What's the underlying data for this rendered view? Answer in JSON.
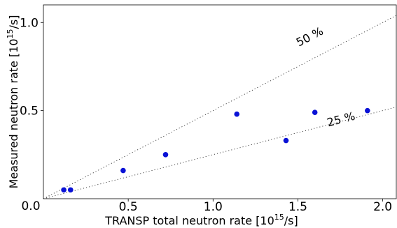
{
  "chart_data": {
    "type": "scatter",
    "title": "",
    "xlabel": "TRANSP total neutron rate [10",
    "xlabel_sup": "15",
    "xlabel_tail": "/s]",
    "ylabel": "Measured neutron rate [10",
    "ylabel_sup": "15",
    "ylabel_tail": "/s]",
    "xlim": [
      0.0,
      2.08
    ],
    "ylim": [
      0.0,
      1.1
    ],
    "x_ticks": [
      0.5,
      1.0,
      1.5,
      2.0
    ],
    "x_tick_labels": [
      "0.5",
      "1.0",
      "1.5",
      "2.0"
    ],
    "y_ticks": [
      0.5,
      1.0
    ],
    "y_tick_labels": [
      "0.5",
      "1.0"
    ],
    "origin_label": "0.0",
    "grid": false,
    "marker_color": "#0a12d6",
    "series": [
      {
        "points": [
          {
            "x": 0.12,
            "y": 0.05
          },
          {
            "x": 0.16,
            "y": 0.05
          },
          {
            "x": 0.47,
            "y": 0.16
          },
          {
            "x": 0.72,
            "y": 0.25
          },
          {
            "x": 1.14,
            "y": 0.48
          },
          {
            "x": 1.43,
            "y": 0.33
          },
          {
            "x": 1.6,
            "y": 0.49
          },
          {
            "x": 1.91,
            "y": 0.5
          }
        ]
      }
    ],
    "reference_lines": [
      {
        "label": "50 %",
        "slope": 0.5,
        "label_x": 1.58,
        "label_y": 0.9
      },
      {
        "label": "25 %",
        "slope": 0.25,
        "label_x": 1.76,
        "label_y": 0.43
      }
    ]
  }
}
